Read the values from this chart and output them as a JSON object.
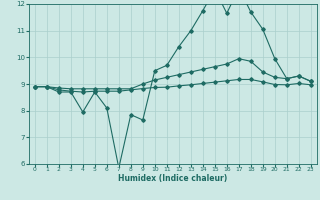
{
  "xlabel": "Humidex (Indice chaleur)",
  "xlim": [
    -0.5,
    23.5
  ],
  "ylim": [
    6,
    12
  ],
  "xticks": [
    0,
    1,
    2,
    3,
    4,
    5,
    6,
    7,
    8,
    9,
    10,
    11,
    12,
    13,
    14,
    15,
    16,
    17,
    18,
    19,
    20,
    21,
    22,
    23
  ],
  "yticks": [
    6,
    7,
    8,
    9,
    10,
    11,
    12
  ],
  "bg_color": "#cce8e4",
  "grid_color": "#aacfcc",
  "line_color": "#1e6b63",
  "line1_x": [
    0,
    1,
    2,
    3,
    4,
    5,
    6,
    7,
    8,
    9,
    10,
    11,
    12,
    13,
    14,
    15,
    16,
    17,
    18,
    19,
    20,
    21,
    22,
    23
  ],
  "line1_y": [
    8.9,
    8.9,
    8.7,
    8.7,
    7.95,
    8.7,
    8.1,
    5.85,
    7.85,
    7.65,
    9.5,
    9.7,
    10.4,
    11.0,
    11.75,
    12.55,
    11.65,
    12.6,
    11.7,
    11.05,
    9.95,
    9.2,
    9.3,
    9.1
  ],
  "line2_x": [
    0,
    1,
    2,
    3,
    4,
    5,
    6,
    7,
    8,
    9,
    10,
    11,
    12,
    13,
    14,
    15,
    16,
    17,
    18,
    19,
    20,
    21,
    22,
    23
  ],
  "line2_y": [
    8.9,
    8.9,
    8.85,
    8.82,
    8.82,
    8.82,
    8.82,
    8.82,
    8.82,
    9.0,
    9.15,
    9.25,
    9.35,
    9.45,
    9.55,
    9.65,
    9.75,
    9.95,
    9.85,
    9.45,
    9.25,
    9.2,
    9.3,
    9.1
  ],
  "line3_x": [
    0,
    1,
    2,
    3,
    4,
    5,
    6,
    7,
    8,
    9,
    10,
    11,
    12,
    13,
    14,
    15,
    16,
    17,
    18,
    19,
    20,
    21,
    22,
    23
  ],
  "line3_y": [
    8.9,
    8.9,
    8.78,
    8.73,
    8.7,
    8.73,
    8.73,
    8.73,
    8.78,
    8.83,
    8.87,
    8.88,
    8.93,
    8.97,
    9.02,
    9.07,
    9.12,
    9.17,
    9.17,
    9.08,
    8.98,
    8.97,
    9.02,
    8.97
  ]
}
